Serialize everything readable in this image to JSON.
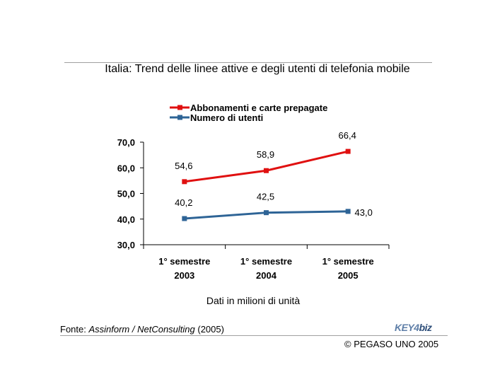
{
  "header": {
    "title": "Italia: Trend delle linee attive e degli utenti di telefonia mobile"
  },
  "footer": {
    "source_prefix": "Fonte: ",
    "source_italic": "Assinform / NetConsulting",
    "source_suffix": " (2005)",
    "logo_left": "KEY4",
    "logo_right": "biz",
    "copyright": "© PEGASO UNO 2005"
  },
  "chart_data": {
    "type": "line",
    "title": "Italia: Trend delle linee attive e degli utenti di telefonia mobile",
    "xlabel": "Dati in milioni di unità",
    "ylabel": "",
    "ylim": [
      30,
      70
    ],
    "yticks": [
      30,
      40,
      50,
      60,
      70
    ],
    "ytick_labels": [
      "30,0",
      "40,0",
      "50,0",
      "60,0",
      "70,0"
    ],
    "categories": [
      [
        "1° semestre",
        "2003"
      ],
      [
        "1° semestre",
        "2004"
      ],
      [
        "1° semestre",
        "2005"
      ]
    ],
    "series": [
      {
        "name": "Abbonamenti e carte prepagate",
        "color": "#e01010",
        "values": [
          54.6,
          58.9,
          66.4
        ],
        "labels": [
          "54,6",
          "58,9",
          "66,4"
        ]
      },
      {
        "name": "Numero di utenti",
        "color": "#2e6496",
        "values": [
          40.2,
          42.5,
          43.0
        ],
        "labels": [
          "40,2",
          "42,5",
          "43,0"
        ]
      }
    ],
    "legend_position": "top",
    "grid": false
  }
}
